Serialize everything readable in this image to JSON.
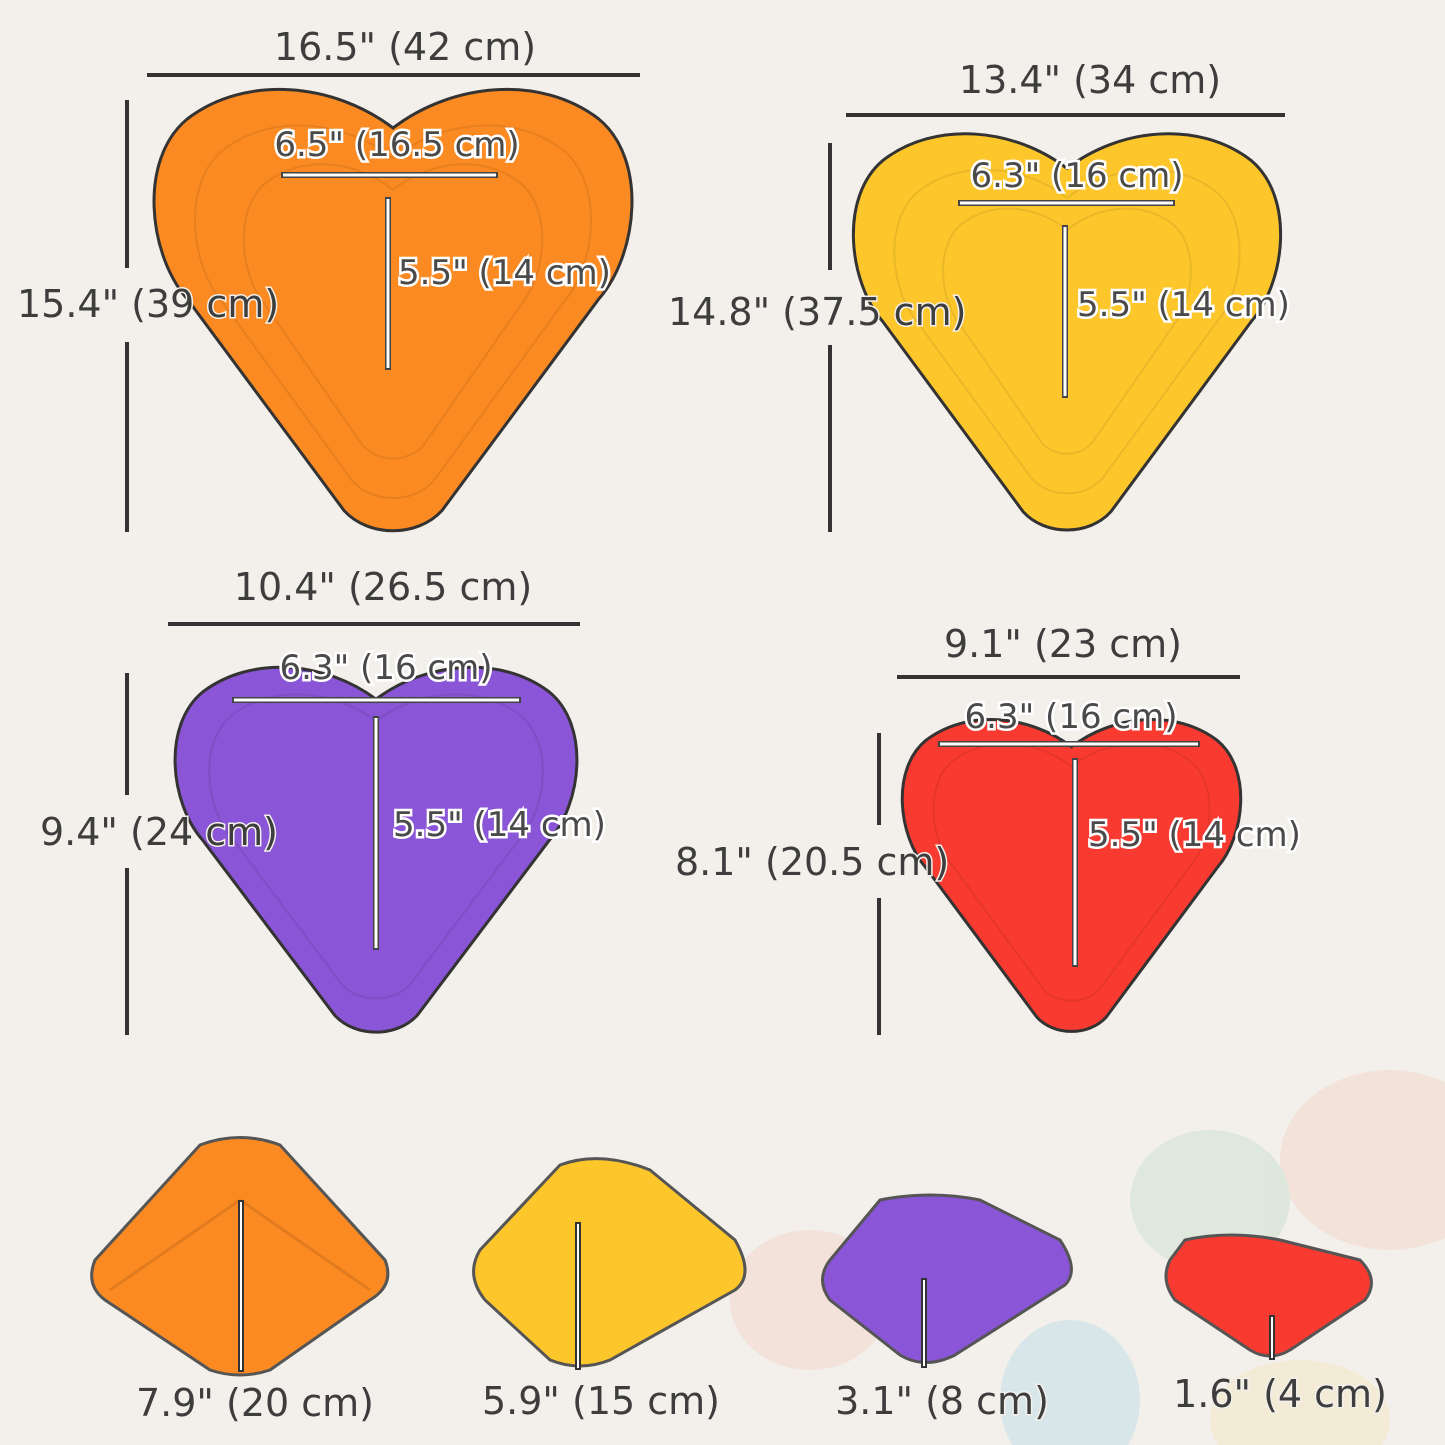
{
  "colors": {
    "orange": "#fb8a22",
    "yellow": "#fdc72c",
    "purple": "#8a55d6",
    "red": "#f93a30",
    "background": "#f3f0eb"
  },
  "stones": [
    {
      "color": "orange",
      "width": "16.5\" (42 cm)",
      "length": "15.4\" (39 cm)",
      "inner_width": "6.5\" (16.5 cm)",
      "inner_length": "5.5\" (14 cm)",
      "height": "7.9\" (20 cm)"
    },
    {
      "color": "yellow",
      "width": "13.4\" (34 cm)",
      "length": "14.8\" (37.5 cm)",
      "inner_width": "6.3\" (16 cm)",
      "inner_length": "5.5\" (14 cm)",
      "height": "5.9\" (15 cm)"
    },
    {
      "color": "purple",
      "width": "10.4\" (26.5 cm)",
      "length": "9.4\" (24 cm)",
      "inner_width": "6.3\" (16 cm)",
      "inner_length": "5.5\" (14 cm)",
      "height": "3.1\" (8 cm)"
    },
    {
      "color": "red",
      "width": "9.1\" (23 cm)",
      "length": "8.1\" (20.5 cm)",
      "inner_width": "6.3\" (16 cm)",
      "inner_length": "5.5\" (14 cm)",
      "height": "1.6\" (4 cm)"
    }
  ]
}
